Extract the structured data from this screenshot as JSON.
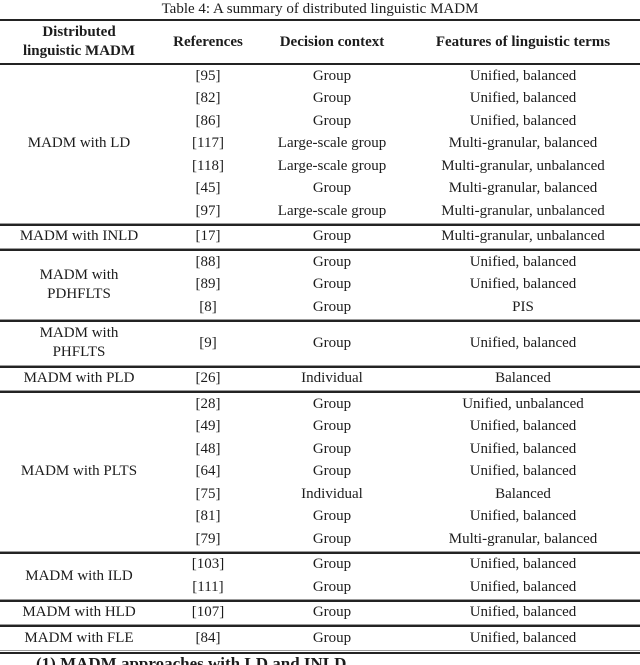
{
  "caption": "Table 4: A summary of distributed linguistic MADM",
  "columns": {
    "col1_line1": "Distributed",
    "col1_line2": "linguistic MADM",
    "col2": "References",
    "col3": "Decision context",
    "col4": "Features of linguistic terms"
  },
  "sections": [
    {
      "label_lines": [
        "MADM with LD"
      ],
      "rows": [
        {
          "ref": "[95]",
          "context": "Group",
          "features": "Unified, balanced"
        },
        {
          "ref": "[82]",
          "context": "Group",
          "features": "Unified, balanced"
        },
        {
          "ref": "[86]",
          "context": "Group",
          "features": "Unified, balanced"
        },
        {
          "ref": "[117]",
          "context": "Large-scale group",
          "features": "Multi-granular, balanced"
        },
        {
          "ref": "[118]",
          "context": "Large-scale group",
          "features": "Multi-granular, unbalanced"
        },
        {
          "ref": "[45]",
          "context": "Group",
          "features": "Multi-granular, balanced"
        },
        {
          "ref": "[97]",
          "context": "Large-scale group",
          "features": "Multi-granular, unbalanced"
        }
      ]
    },
    {
      "label_lines": [
        "MADM with INLD"
      ],
      "rows": [
        {
          "ref": "[17]",
          "context": "Group",
          "features": "Multi-granular, unbalanced"
        }
      ]
    },
    {
      "label_lines": [
        "MADM with",
        "PDHFLTS"
      ],
      "rows": [
        {
          "ref": "[88]",
          "context": "Group",
          "features": "Unified, balanced"
        },
        {
          "ref": "[89]",
          "context": "Group",
          "features": "Unified, balanced"
        },
        {
          "ref": "[8]",
          "context": "Group",
          "features": "PIS"
        }
      ]
    },
    {
      "label_lines": [
        "MADM with",
        "PHFLTS"
      ],
      "rows": [
        {
          "ref": "[9]",
          "context": "Group",
          "features": "Unified, balanced"
        }
      ]
    },
    {
      "label_lines": [
        "MADM with PLD"
      ],
      "rows": [
        {
          "ref": "[26]",
          "context": "Individual",
          "features": "Balanced"
        }
      ]
    },
    {
      "label_lines": [
        "MADM with PLTS"
      ],
      "rows": [
        {
          "ref": "[28]",
          "context": "Group",
          "features": "Unified, unbalanced"
        },
        {
          "ref": "[49]",
          "context": "Group",
          "features": "Unified, balanced"
        },
        {
          "ref": "[48]",
          "context": "Group",
          "features": "Unified, balanced"
        },
        {
          "ref": "[64]",
          "context": "Group",
          "features": "Unified, balanced"
        },
        {
          "ref": "[75]",
          "context": "Individual",
          "features": "Balanced"
        },
        {
          "ref": "[81]",
          "context": "Group",
          "features": "Unified, balanced"
        },
        {
          "ref": "[79]",
          "context": "Group",
          "features": "Multi-granular, balanced"
        }
      ]
    },
    {
      "label_lines": [
        "MADM with ILD"
      ],
      "rows": [
        {
          "ref": "[103]",
          "context": "Group",
          "features": "Unified, balanced"
        },
        {
          "ref": "[111]",
          "context": "Group",
          "features": "Unified, balanced"
        }
      ]
    },
    {
      "label_lines": [
        "MADM with HLD"
      ],
      "rows": [
        {
          "ref": "[107]",
          "context": "Group",
          "features": "Unified, balanced"
        }
      ]
    },
    {
      "label_lines": [
        "MADM with FLE"
      ],
      "rows": [
        {
          "ref": "[84]",
          "context": "Group",
          "features": "Unified, balanced"
        }
      ]
    }
  ],
  "footnote": "(1) MADM approaches with LD and INLD"
}
